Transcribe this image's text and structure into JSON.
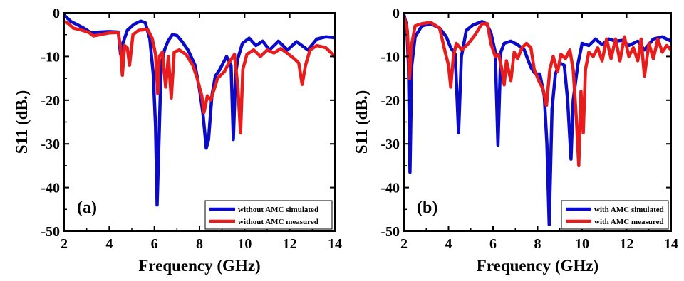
{
  "chart_data": [
    {
      "type": "line",
      "panel_label": "(a)",
      "xlabel": "Frequency (GHz)",
      "ylabel": "S11 (dB.)",
      "xlim": [
        2,
        14
      ],
      "ylim": [
        -50,
        0
      ],
      "xticks": [
        2,
        4,
        6,
        8,
        10,
        12,
        14
      ],
      "yticks": [
        0,
        -10,
        -20,
        -30,
        -40,
        -50
      ],
      "legend_position": "bottom-right",
      "series": [
        {
          "name": "without AMC simulated",
          "color": "#0a0ac8",
          "points": [
            [
              2,
              -0.5
            ],
            [
              2.3,
              -2
            ],
            [
              2.8,
              -3.3
            ],
            [
              3.2,
              -4.6
            ],
            [
              3.6,
              -4.4
            ],
            [
              4,
              -4.3
            ],
            [
              4.4,
              -4.4
            ],
            [
              4.5,
              -9.5
            ],
            [
              4.6,
              -7
            ],
            [
              4.8,
              -4
            ],
            [
              5.1,
              -2.6
            ],
            [
              5.4,
              -1.9
            ],
            [
              5.6,
              -2.3
            ],
            [
              5.8,
              -6
            ],
            [
              5.95,
              -14
            ],
            [
              6.05,
              -26
            ],
            [
              6.12,
              -44
            ],
            [
              6.2,
              -30
            ],
            [
              6.3,
              -12
            ],
            [
              6.45,
              -8.5
            ],
            [
              6.6,
              -6.5
            ],
            [
              6.8,
              -5
            ],
            [
              7,
              -5.2
            ],
            [
              7.2,
              -6.4
            ],
            [
              7.5,
              -8.6
            ],
            [
              7.8,
              -12
            ],
            [
              8,
              -17.5
            ],
            [
              8.15,
              -23
            ],
            [
              8.3,
              -31
            ],
            [
              8.4,
              -29
            ],
            [
              8.55,
              -19
            ],
            [
              8.7,
              -14.5
            ],
            [
              8.9,
              -13
            ],
            [
              9.2,
              -10
            ],
            [
              9.4,
              -12
            ],
            [
              9.5,
              -29
            ],
            [
              9.6,
              -14
            ],
            [
              9.7,
              -10.5
            ],
            [
              9.9,
              -7
            ],
            [
              10.2,
              -5.8
            ],
            [
              10.5,
              -7.5
            ],
            [
              10.8,
              -6.5
            ],
            [
              11.1,
              -8.5
            ],
            [
              11.5,
              -6.5
            ],
            [
              11.9,
              -8.5
            ],
            [
              12.3,
              -6.6
            ],
            [
              12.8,
              -8.5
            ],
            [
              13.2,
              -6
            ],
            [
              13.6,
              -5.5
            ],
            [
              14,
              -5.7
            ]
          ]
        },
        {
          "name": "without AMC measured",
          "color": "#e81c1c",
          "points": [
            [
              2,
              -2
            ],
            [
              2.2,
              -2.5
            ],
            [
              2.4,
              -3.5
            ],
            [
              2.8,
              -4
            ],
            [
              3.1,
              -4.5
            ],
            [
              3.3,
              -5.3
            ],
            [
              3.6,
              -5
            ],
            [
              4,
              -4.6
            ],
            [
              4.4,
              -4.5
            ],
            [
              4.5,
              -8
            ],
            [
              4.58,
              -14.3
            ],
            [
              4.68,
              -7.5
            ],
            [
              4.8,
              -8
            ],
            [
              4.9,
              -12
            ],
            [
              5.05,
              -5
            ],
            [
              5.3,
              -4
            ],
            [
              5.7,
              -3.8
            ],
            [
              5.9,
              -5.8
            ],
            [
              6.05,
              -9.5
            ],
            [
              6.15,
              -18.5
            ],
            [
              6.22,
              -10
            ],
            [
              6.35,
              -9
            ],
            [
              6.5,
              -17
            ],
            [
              6.62,
              -10
            ],
            [
              6.75,
              -19.5
            ],
            [
              6.88,
              -9
            ],
            [
              7.1,
              -8.5
            ],
            [
              7.4,
              -9.5
            ],
            [
              7.7,
              -12
            ],
            [
              7.9,
              -15
            ],
            [
              8.1,
              -19
            ],
            [
              8.2,
              -22.8
            ],
            [
              8.35,
              -19
            ],
            [
              8.5,
              -20
            ],
            [
              8.65,
              -17.5
            ],
            [
              8.8,
              -15
            ],
            [
              9.1,
              -13.5
            ],
            [
              9.3,
              -11.5
            ],
            [
              9.55,
              -9.5
            ],
            [
              9.7,
              -17
            ],
            [
              9.82,
              -27.5
            ],
            [
              9.92,
              -13
            ],
            [
              10.1,
              -9.5
            ],
            [
              10.4,
              -8.5
            ],
            [
              10.7,
              -10
            ],
            [
              11,
              -8.5
            ],
            [
              11.3,
              -9.2
            ],
            [
              11.6,
              -8.2
            ],
            [
              11.9,
              -9.3
            ],
            [
              12.2,
              -10.5
            ],
            [
              12.4,
              -11.5
            ],
            [
              12.55,
              -16.4
            ],
            [
              12.7,
              -12
            ],
            [
              12.9,
              -8.5
            ],
            [
              13.2,
              -7.5
            ],
            [
              13.6,
              -8
            ],
            [
              14,
              -10
            ]
          ]
        }
      ]
    },
    {
      "type": "line",
      "panel_label": "(b)",
      "xlabel": "Frequency (GHz)",
      "ylabel": "S11 (dB.)",
      "xlim": [
        2,
        14
      ],
      "ylim": [
        -50,
        0
      ],
      "xticks": [
        2,
        4,
        6,
        8,
        10,
        12,
        14
      ],
      "yticks": [
        0,
        -10,
        -20,
        -30,
        -40,
        -50
      ],
      "legend_position": "bottom-right",
      "series": [
        {
          "name": "with AMC simulated",
          "color": "#0a0ac8",
          "points": [
            [
              2,
              -0.5
            ],
            [
              2.12,
              -3
            ],
            [
              2.2,
              -12
            ],
            [
              2.27,
              -36.5
            ],
            [
              2.35,
              -12
            ],
            [
              2.5,
              -5.5
            ],
            [
              2.8,
              -3
            ],
            [
              3.2,
              -2.5
            ],
            [
              3.6,
              -3.5
            ],
            [
              3.9,
              -5.5
            ],
            [
              4.1,
              -8
            ],
            [
              4.3,
              -9.5
            ],
            [
              4.45,
              -27.5
            ],
            [
              4.58,
              -10
            ],
            [
              4.8,
              -4
            ],
            [
              5.1,
              -2.8
            ],
            [
              5.5,
              -2
            ],
            [
              5.7,
              -2.5
            ],
            [
              5.9,
              -4.5
            ],
            [
              6.1,
              -9
            ],
            [
              6.22,
              -30.3
            ],
            [
              6.35,
              -9
            ],
            [
              6.5,
              -7
            ],
            [
              6.8,
              -6.5
            ],
            [
              7.1,
              -7.3
            ],
            [
              7.4,
              -8.5
            ],
            [
              7.7,
              -12.5
            ],
            [
              7.9,
              -14
            ],
            [
              8.1,
              -14
            ],
            [
              8.3,
              -19
            ],
            [
              8.42,
              -30
            ],
            [
              8.52,
              -48.5
            ],
            [
              8.65,
              -22
            ],
            [
              8.8,
              -14
            ],
            [
              9,
              -11.5
            ],
            [
              9.2,
              -12
            ],
            [
              9.35,
              -20
            ],
            [
              9.5,
              -33.5
            ],
            [
              9.6,
              -20
            ],
            [
              9.8,
              -12
            ],
            [
              10,
              -7
            ],
            [
              10.3,
              -7.5
            ],
            [
              10.6,
              -6
            ],
            [
              10.9,
              -7.3
            ],
            [
              11.2,
              -6
            ],
            [
              11.5,
              -6.5
            ],
            [
              11.8,
              -6.3
            ],
            [
              12.1,
              -7.5
            ],
            [
              12.5,
              -6.5
            ],
            [
              12.8,
              -8.5
            ],
            [
              13.2,
              -6
            ],
            [
              13.6,
              -5.5
            ],
            [
              14,
              -6.5
            ]
          ]
        },
        {
          "name": "with AMC measured",
          "color": "#e81c1c",
          "points": [
            [
              2,
              -1
            ],
            [
              2.15,
              -4
            ],
            [
              2.25,
              -15
            ],
            [
              2.32,
              -8
            ],
            [
              2.5,
              -3
            ],
            [
              2.8,
              -2.5
            ],
            [
              3.2,
              -2.2
            ],
            [
              3.6,
              -3.5
            ],
            [
              3.85,
              -9
            ],
            [
              4,
              -12
            ],
            [
              4.1,
              -17
            ],
            [
              4.22,
              -10
            ],
            [
              4.35,
              -7
            ],
            [
              4.6,
              -8.5
            ],
            [
              4.9,
              -7
            ],
            [
              5.2,
              -5
            ],
            [
              5.5,
              -2.5
            ],
            [
              5.75,
              -2.5
            ],
            [
              5.9,
              -7
            ],
            [
              6.1,
              -10
            ],
            [
              6.25,
              -9.5
            ],
            [
              6.4,
              -13
            ],
            [
              6.5,
              -16.5
            ],
            [
              6.6,
              -11
            ],
            [
              6.8,
              -15.5
            ],
            [
              6.95,
              -9
            ],
            [
              7.1,
              -10.5
            ],
            [
              7.3,
              -8
            ],
            [
              7.5,
              -7
            ],
            [
              7.7,
              -8
            ],
            [
              7.85,
              -13
            ],
            [
              8.05,
              -15.5
            ],
            [
              8.25,
              -17.5
            ],
            [
              8.4,
              -21.2
            ],
            [
              8.55,
              -13
            ],
            [
              8.7,
              -10
            ],
            [
              8.9,
              -13.5
            ],
            [
              9.05,
              -9.5
            ],
            [
              9.25,
              -10.5
            ],
            [
              9.45,
              -8.5
            ],
            [
              9.6,
              -13
            ],
            [
              9.75,
              -25
            ],
            [
              9.85,
              -35
            ],
            [
              9.95,
              -18
            ],
            [
              10.05,
              -27.5
            ],
            [
              10.15,
              -13
            ],
            [
              10.3,
              -9
            ],
            [
              10.5,
              -10
            ],
            [
              10.7,
              -8
            ],
            [
              10.9,
              -11
            ],
            [
              11.1,
              -6
            ],
            [
              11.3,
              -10.5
            ],
            [
              11.5,
              -6
            ],
            [
              11.7,
              -11
            ],
            [
              11.9,
              -5.5
            ],
            [
              12.1,
              -10
            ],
            [
              12.3,
              -8
            ],
            [
              12.5,
              -11
            ],
            [
              12.65,
              -6
            ],
            [
              12.8,
              -14.5
            ],
            [
              13,
              -7
            ],
            [
              13.2,
              -10.5
            ],
            [
              13.4,
              -6
            ],
            [
              13.6,
              -9
            ],
            [
              13.8,
              -7.5
            ],
            [
              14,
              -8.5
            ]
          ]
        }
      ]
    }
  ]
}
